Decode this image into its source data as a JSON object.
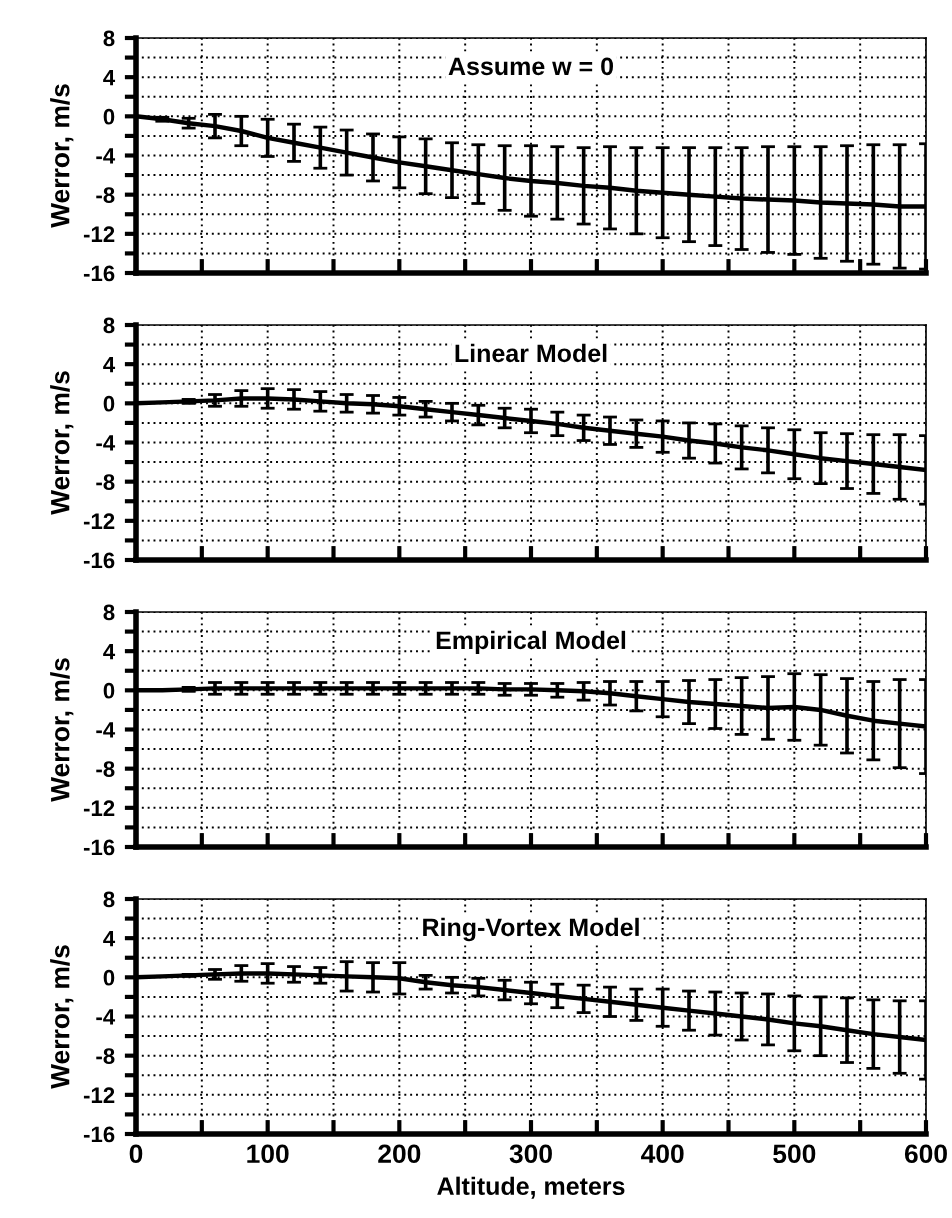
{
  "chart_data": [
    {
      "type": "line",
      "title": "Assume w = 0",
      "ylabel": "Werror, m/s",
      "x": [
        0,
        20,
        40,
        60,
        80,
        100,
        120,
        140,
        160,
        180,
        200,
        220,
        240,
        260,
        280,
        300,
        320,
        340,
        360,
        380,
        400,
        420,
        440,
        460,
        480,
        500,
        520,
        540,
        560,
        580,
        600
      ],
      "series": [
        {
          "color": "#000000",
          "values": [
            0,
            -0.3,
            -0.7,
            -1.0,
            -1.5,
            -2.2,
            -2.7,
            -3.2,
            -3.7,
            -4.2,
            -4.7,
            -5.1,
            -5.5,
            -5.9,
            -6.3,
            -6.6,
            -6.8,
            -7.1,
            -7.3,
            -7.6,
            -7.8,
            -8.0,
            -8.2,
            -8.4,
            -8.5,
            -8.6,
            -8.8,
            -8.9,
            -9.0,
            -9.2,
            -9.2
          ],
          "errors": [
            null,
            0.2,
            0.5,
            1.2,
            1.5,
            1.9,
            1.9,
            2.1,
            2.3,
            2.4,
            2.6,
            2.8,
            2.8,
            3.0,
            3.3,
            3.6,
            3.7,
            3.9,
            4.2,
            4.4,
            4.6,
            4.8,
            5.0,
            5.2,
            5.4,
            5.5,
            5.7,
            5.9,
            6.1,
            6.3,
            6.4
          ]
        }
      ],
      "xlim": [
        0,
        600
      ],
      "xticks": [
        0,
        {
          "value": 50,
          "label": null
        },
        100,
        {
          "value": 150,
          "label": null
        },
        200,
        {
          "value": 250,
          "label": null
        },
        300,
        {
          "value": 350,
          "label": null
        },
        400,
        {
          "value": 450,
          "label": null
        },
        500,
        {
          "value": 550,
          "label": null
        },
        600
      ],
      "ylim": [
        -16,
        8
      ],
      "yticks": [
        -16,
        {
          "value": -14,
          "label": null
        },
        -12,
        {
          "value": -10,
          "label": null
        },
        -8,
        {
          "value": -6,
          "label": null
        },
        -4,
        {
          "value": -2,
          "label": null
        },
        0,
        {
          "value": 2,
          "label": null
        },
        4,
        {
          "value": 6,
          "label": null
        },
        8
      ],
      "grid": true,
      "line_style": "solid",
      "tick_labels": "y"
    },
    {
      "type": "line",
      "title": "Linear Model",
      "ylabel": "Werror, m/s",
      "x": [
        0,
        20,
        40,
        60,
        80,
        100,
        120,
        140,
        160,
        180,
        200,
        220,
        240,
        260,
        280,
        300,
        320,
        340,
        360,
        380,
        400,
        420,
        440,
        460,
        480,
        500,
        520,
        540,
        560,
        580,
        600
      ],
      "series": [
        {
          "color": "#000000",
          "values": [
            0,
            0.1,
            0.2,
            0.3,
            0.5,
            0.5,
            0.4,
            0.2,
            0,
            -0.1,
            -0.3,
            -0.6,
            -0.9,
            -1.2,
            -1.5,
            -1.8,
            -2.1,
            -2.5,
            -2.8,
            -3.1,
            -3.4,
            -3.8,
            -4.1,
            -4.5,
            -4.8,
            -5.2,
            -5.6,
            -5.9,
            -6.2,
            -6.5,
            -6.8
          ],
          "errors": [
            null,
            0,
            0.2,
            0.6,
            0.8,
            1.0,
            1.0,
            1.0,
            0.9,
            0.9,
            0.9,
            0.8,
            0.9,
            1.0,
            1.0,
            1.2,
            1.2,
            1.3,
            1.4,
            1.4,
            1.6,
            1.8,
            2.0,
            2.2,
            2.3,
            2.5,
            2.6,
            2.8,
            3.0,
            3.3,
            3.5
          ]
        }
      ],
      "xlim": [
        0,
        600
      ],
      "xticks": [
        0,
        {
          "value": 50,
          "label": null
        },
        100,
        {
          "value": 150,
          "label": null
        },
        200,
        {
          "value": 250,
          "label": null
        },
        300,
        {
          "value": 350,
          "label": null
        },
        400,
        {
          "value": 450,
          "label": null
        },
        500,
        {
          "value": 550,
          "label": null
        },
        600
      ],
      "ylim": [
        -16,
        8
      ],
      "yticks": [
        -16,
        {
          "value": -14,
          "label": null
        },
        -12,
        {
          "value": -10,
          "label": null
        },
        -8,
        {
          "value": -6,
          "label": null
        },
        -4,
        {
          "value": -2,
          "label": null
        },
        0,
        {
          "value": 2,
          "label": null
        },
        4,
        {
          "value": 6,
          "label": null
        },
        8
      ],
      "grid": true,
      "line_style": "solid",
      "tick_labels": "y"
    },
    {
      "type": "line",
      "title": "Empirical Model",
      "ylabel": "Werror, m/s",
      "x": [
        0,
        20,
        40,
        60,
        80,
        100,
        120,
        140,
        160,
        180,
        200,
        220,
        240,
        260,
        280,
        300,
        320,
        340,
        360,
        380,
        400,
        420,
        440,
        460,
        480,
        500,
        520,
        540,
        560,
        580,
        600
      ],
      "series": [
        {
          "color": "#000000",
          "values": [
            0,
            0,
            0.1,
            0.2,
            0.2,
            0.2,
            0.2,
            0.2,
            0.2,
            0.2,
            0.2,
            0.2,
            0.2,
            0.2,
            0.1,
            0.1,
            0,
            -0.1,
            -0.3,
            -0.6,
            -0.9,
            -1.2,
            -1.4,
            -1.6,
            -1.8,
            -1.7,
            -2.0,
            -2.6,
            -3.1,
            -3.4,
            -3.7
          ],
          "errors": [
            null,
            0,
            0.2,
            0.6,
            0.6,
            0.6,
            0.6,
            0.6,
            0.6,
            0.6,
            0.6,
            0.6,
            0.6,
            0.6,
            0.6,
            0.6,
            0.7,
            0.9,
            1.2,
            1.5,
            1.8,
            2.2,
            2.5,
            2.9,
            3.2,
            3.4,
            3.6,
            3.8,
            4.0,
            4.5,
            4.8
          ]
        }
      ],
      "xlim": [
        0,
        600
      ],
      "xticks": [
        0,
        {
          "value": 50,
          "label": null
        },
        100,
        {
          "value": 150,
          "label": null
        },
        200,
        {
          "value": 250,
          "label": null
        },
        300,
        {
          "value": 350,
          "label": null
        },
        400,
        {
          "value": 450,
          "label": null
        },
        500,
        {
          "value": 550,
          "label": null
        },
        600
      ],
      "ylim": [
        -16,
        8
      ],
      "yticks": [
        -16,
        {
          "value": -14,
          "label": null
        },
        -12,
        {
          "value": -10,
          "label": null
        },
        -8,
        {
          "value": -6,
          "label": null
        },
        -4,
        {
          "value": -2,
          "label": null
        },
        0,
        {
          "value": 2,
          "label": null
        },
        4,
        {
          "value": 6,
          "label": null
        },
        8
      ],
      "grid": true,
      "line_style": "solid",
      "tick_labels": "y"
    },
    {
      "type": "line",
      "title": "Ring-Vortex Model",
      "ylabel": "Werror, m/s",
      "xlabel": "Altitude, meters",
      "x": [
        0,
        20,
        40,
        60,
        80,
        100,
        120,
        140,
        160,
        180,
        200,
        220,
        240,
        260,
        280,
        300,
        320,
        340,
        360,
        380,
        400,
        420,
        440,
        460,
        480,
        500,
        520,
        540,
        560,
        580,
        600
      ],
      "series": [
        {
          "color": "#000000",
          "values": [
            0,
            0.1,
            0.2,
            0.3,
            0.4,
            0.4,
            0.3,
            0.2,
            0.1,
            0,
            -0.1,
            -0.5,
            -0.8,
            -1.0,
            -1.3,
            -1.6,
            -1.9,
            -2.2,
            -2.5,
            -2.8,
            -3.1,
            -3.4,
            -3.7,
            -4.0,
            -4.3,
            -4.7,
            -5.0,
            -5.4,
            -5.8,
            -6.1,
            -6.4
          ],
          "errors": [
            null,
            0,
            0.1,
            0.5,
            0.8,
            1.0,
            0.8,
            0.8,
            1.5,
            1.5,
            1.6,
            0.7,
            0.8,
            0.9,
            1.0,
            1.1,
            1.2,
            1.4,
            1.5,
            1.6,
            1.9,
            2.0,
            2.2,
            2.4,
            2.6,
            2.8,
            3.0,
            3.3,
            3.5,
            3.7,
            4.0
          ]
        }
      ],
      "xlim": [
        0,
        600
      ],
      "xticks": [
        0,
        {
          "value": 50,
          "label": null
        },
        100,
        {
          "value": 150,
          "label": null
        },
        200,
        {
          "value": 250,
          "label": null
        },
        300,
        {
          "value": 350,
          "label": null
        },
        400,
        {
          "value": 450,
          "label": null
        },
        500,
        {
          "value": 550,
          "label": null
        },
        600
      ],
      "ylim": [
        -16,
        8
      ],
      "yticks": [
        -16,
        {
          "value": -14,
          "label": null
        },
        -12,
        {
          "value": -10,
          "label": null
        },
        -8,
        {
          "value": -6,
          "label": null
        },
        -4,
        {
          "value": -2,
          "label": null
        },
        0,
        {
          "value": 2,
          "label": null
        },
        4,
        {
          "value": 6,
          "label": null
        },
        8
      ],
      "grid": true,
      "line_style": "solid"
    }
  ]
}
